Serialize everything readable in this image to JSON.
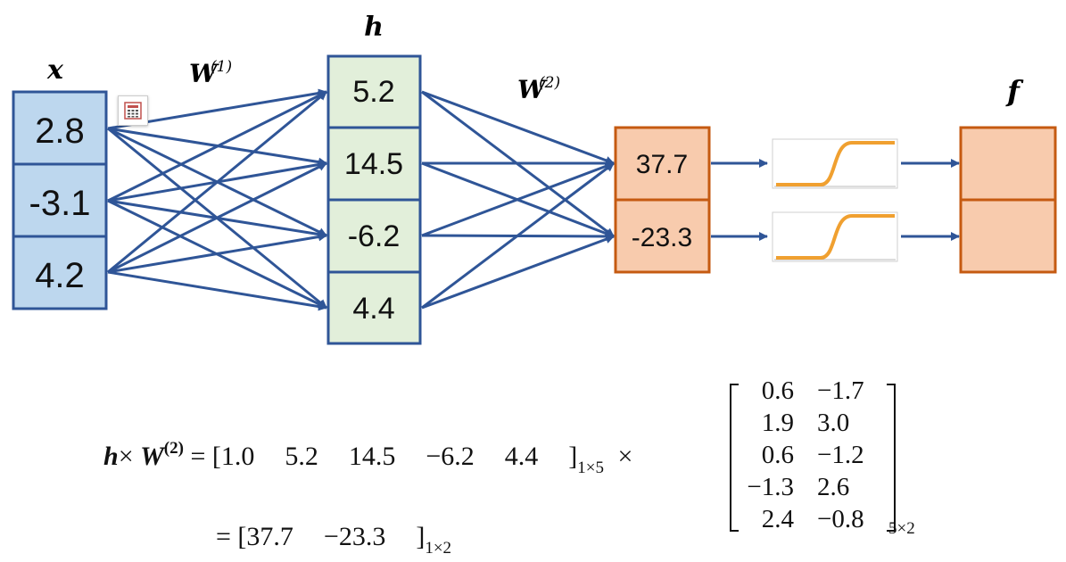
{
  "labels": {
    "x": "x",
    "h": "h",
    "f": "f",
    "w1": "W",
    "w1_sup": "(1)",
    "w2": "W",
    "w2_sup": "(2)"
  },
  "x_values": [
    "2.8",
    "-3.1",
    "4.2"
  ],
  "h_values": [
    "5.2",
    "14.5",
    "-6.2",
    "4.4"
  ],
  "out_values": [
    "37.7",
    "-23.3"
  ],
  "colors": {
    "x_fill": "#bdd7ee",
    "x_stroke": "#2f5597",
    "h_fill": "#e2efda",
    "h_stroke": "#2f5597",
    "out_fill": "#f8cbad",
    "out_stroke": "#c55a11",
    "edge": "#2f5597",
    "sigmoid": "#f0a030"
  },
  "equation": {
    "lhs_h": "h",
    "times": "×",
    "lhs_w": "W",
    "lhs_sup": "(2)",
    "equals": "=",
    "row_open": "[",
    "row_values": [
      "1.0",
      "5.2",
      "14.5",
      "−6.2",
      "4.4"
    ],
    "row_close": "]",
    "row_sub": "1×5",
    "mult": "×",
    "matrix": [
      [
        "0.6",
        "−1.7"
      ],
      [
        "1.9",
        "3.0"
      ],
      [
        "0.6",
        "−1.2"
      ],
      [
        "−1.3",
        "2.6"
      ],
      [
        "2.4",
        "−0.8"
      ]
    ],
    "matrix_sub": "5×2",
    "result_equals": "=",
    "result_open": "[",
    "result_values": [
      "37.7",
      "−23.3"
    ],
    "result_close": "]",
    "result_sub": "1×2"
  },
  "icons": {
    "calculator": "calculator-icon"
  }
}
